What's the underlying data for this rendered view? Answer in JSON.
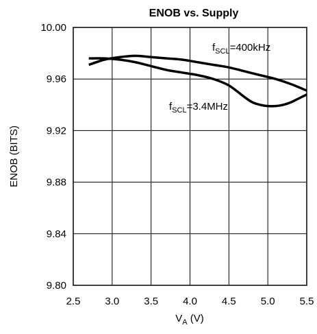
{
  "chart_data": {
    "type": "line",
    "title": "ENOB vs. Supply",
    "xlabel": {
      "main": "V",
      "sub": "A",
      "rest": " (V)"
    },
    "ylabel": "ENOB (BITS)",
    "xlim": [
      2.5,
      5.5
    ],
    "ylim": [
      9.8,
      10.0
    ],
    "xticks": [
      "2.5",
      "3.0",
      "3.5",
      "4.0",
      "4.5",
      "5.0",
      "5.5"
    ],
    "yticks": [
      "9.80",
      "9.84",
      "9.88",
      "9.92",
      "9.96",
      "10.00"
    ],
    "grid": true,
    "series": [
      {
        "name": "fSCL=400kHz",
        "label": {
          "main": "f",
          "sub": "SCL",
          "rest": "=400kHz"
        },
        "x": [
          2.7,
          2.9,
          3.1,
          3.3,
          3.5,
          3.7,
          3.9,
          4.1,
          4.3,
          4.5,
          4.7,
          4.9,
          5.1,
          5.3,
          5.5
        ],
        "y": [
          9.971,
          9.975,
          9.977,
          9.978,
          9.977,
          9.976,
          9.975,
          9.973,
          9.971,
          9.969,
          9.966,
          9.963,
          9.96,
          9.956,
          9.951
        ]
      },
      {
        "name": "fSCL=3.4MHz",
        "label": {
          "main": "f",
          "sub": "SCL",
          "rest": "=3.4MHz"
        },
        "x": [
          2.7,
          2.9,
          3.1,
          3.3,
          3.5,
          3.7,
          3.9,
          4.1,
          4.3,
          4.5,
          4.7,
          4.8,
          4.9,
          5.0,
          5.1,
          5.2,
          5.3,
          5.4,
          5.5
        ],
        "y": [
          9.976,
          9.976,
          9.975,
          9.973,
          9.97,
          9.967,
          9.965,
          9.963,
          9.96,
          9.955,
          9.946,
          9.942,
          9.94,
          9.939,
          9.939,
          9.94,
          9.942,
          9.945,
          9.948
        ]
      }
    ]
  }
}
